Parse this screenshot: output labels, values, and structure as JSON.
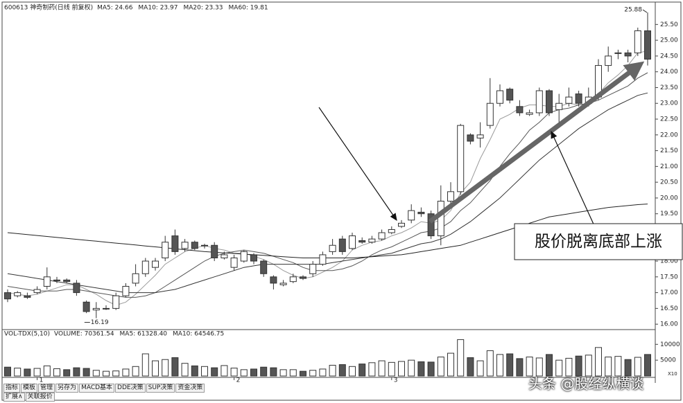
{
  "chart_data": {
    "type": "candlestick",
    "title": "600613 神奇制药(日线 前复权)",
    "categories": [
      null,
      null,
      null,
      "1",
      null,
      null,
      null,
      null,
      null,
      null,
      null,
      null,
      null,
      null,
      null,
      null,
      null,
      null,
      null,
      null,
      null,
      null,
      null,
      "2",
      null,
      null,
      null,
      null,
      null,
      null,
      null,
      null,
      null,
      null,
      null,
      null,
      null,
      null,
      null,
      "3",
      null,
      null,
      null,
      null,
      null,
      null,
      null,
      null,
      null,
      null,
      null,
      null,
      null,
      null,
      null,
      null,
      null,
      null,
      null,
      null,
      null,
      null,
      null,
      null,
      null,
      null
    ],
    "open": [
      17.0,
      16.9,
      16.9,
      17.0,
      17.2,
      17.4,
      17.4,
      17.3,
      16.7,
      16.45,
      16.5,
      16.5,
      16.9,
      17.3,
      17.6,
      17.8,
      18.1,
      18.8,
      18.4,
      18.6,
      18.5,
      18.5,
      18.1,
      17.8,
      18.0,
      18.2,
      18.0,
      17.5,
      17.25,
      17.35,
      17.5,
      17.6,
      17.9,
      18.3,
      18.7,
      18.4,
      18.65,
      18.6,
      18.7,
      18.9,
      19.1,
      19.3,
      19.55,
      19.5,
      18.8,
      19.9,
      20.2,
      22.0,
      21.9,
      22.3,
      23.0,
      23.45,
      22.9,
      22.65,
      22.7,
      23.4,
      22.8,
      23.0,
      23.3,
      23.0,
      23.2,
      24.2,
      24.6,
      24.6,
      24.6,
      25.3
    ],
    "high": [
      17.1,
      17.05,
      17.0,
      17.2,
      17.8,
      17.5,
      17.45,
      17.4,
      16.75,
      16.7,
      16.6,
      17.0,
      17.3,
      17.9,
      18.1,
      18.1,
      18.8,
      19.0,
      18.7,
      18.65,
      18.55,
      18.6,
      18.3,
      18.2,
      18.35,
      18.25,
      18.05,
      17.55,
      17.4,
      17.6,
      17.55,
      18.0,
      18.3,
      18.7,
      18.8,
      18.9,
      18.75,
      18.8,
      19.0,
      19.1,
      19.3,
      19.8,
      19.7,
      19.6,
      20.4,
      20.5,
      22.35,
      22.05,
      22.4,
      23.8,
      23.6,
      23.5,
      23.1,
      22.8,
      23.5,
      23.45,
      23.3,
      23.5,
      23.4,
      23.5,
      24.4,
      24.8,
      24.7,
      24.7,
      25.4,
      25.88
    ],
    "low": [
      16.7,
      16.85,
      16.8,
      16.95,
      17.1,
      17.3,
      17.3,
      16.9,
      16.35,
      16.19,
      16.45,
      16.45,
      16.85,
      17.2,
      17.5,
      17.7,
      18.0,
      18.2,
      18.3,
      18.35,
      18.4,
      18.0,
      18.05,
      17.7,
      17.95,
      17.9,
      17.5,
      17.1,
      17.2,
      17.3,
      17.4,
      17.5,
      17.85,
      18.2,
      18.2,
      18.35,
      18.55,
      18.55,
      18.65,
      18.85,
      19.05,
      19.2,
      19.4,
      18.7,
      18.5,
      19.8,
      20.1,
      21.7,
      21.6,
      22.2,
      22.9,
      23.0,
      22.6,
      22.6,
      22.6,
      22.6,
      22.4,
      22.9,
      22.9,
      22.9,
      23.1,
      24.0,
      24.4,
      24.3,
      24.5,
      24.2
    ],
    "close": [
      16.8,
      17.0,
      16.85,
      17.1,
      17.5,
      17.4,
      17.35,
      17.0,
      16.4,
      16.5,
      16.5,
      16.9,
      17.2,
      17.6,
      18.0,
      18.0,
      18.6,
      18.3,
      18.6,
      18.4,
      18.5,
      18.1,
      18.2,
      18.1,
      18.3,
      18.0,
      17.6,
      17.3,
      17.3,
      17.5,
      17.45,
      17.9,
      18.2,
      18.5,
      18.3,
      18.8,
      18.6,
      18.7,
      18.9,
      19.0,
      19.2,
      19.6,
      19.5,
      18.8,
      19.9,
      20.2,
      22.3,
      21.8,
      22.0,
      23.0,
      23.4,
      23.1,
      22.7,
      22.7,
      23.4,
      22.7,
      23.0,
      23.2,
      23.0,
      23.2,
      24.2,
      24.5,
      24.6,
      24.5,
      25.3,
      24.4
    ],
    "series": [
      {
        "name": "MA5: 24.66",
        "color": "#9a9a9a",
        "values": [
          17.0,
          16.95,
          16.9,
          16.95,
          17.05,
          17.15,
          17.25,
          17.25,
          17.1,
          16.95,
          16.75,
          16.6,
          16.7,
          16.95,
          17.25,
          17.55,
          17.9,
          18.1,
          18.3,
          18.4,
          18.5,
          18.4,
          18.35,
          18.25,
          18.25,
          18.15,
          18.05,
          17.9,
          17.7,
          17.55,
          17.45,
          17.5,
          17.65,
          17.8,
          18.0,
          18.35,
          18.5,
          18.6,
          18.65,
          18.8,
          18.9,
          19.05,
          19.25,
          19.2,
          19.3,
          19.6,
          20.15,
          20.5,
          21.25,
          21.85,
          22.5,
          22.65,
          22.85,
          22.95,
          22.95,
          22.9,
          22.9,
          23.0,
          22.95,
          23.0,
          23.3,
          23.65,
          23.9,
          24.2,
          24.6,
          24.66
        ]
      },
      {
        "name": "MA10: 23.97",
        "color": "#555555",
        "values": [
          17.2,
          17.15,
          17.1,
          17.05,
          17.05,
          17.05,
          17.1,
          17.1,
          17.05,
          17.0,
          16.95,
          16.9,
          16.85,
          16.85,
          16.9,
          17.0,
          17.2,
          17.4,
          17.6,
          17.8,
          18.0,
          18.15,
          18.25,
          18.3,
          18.35,
          18.3,
          18.25,
          18.15,
          18.05,
          17.95,
          17.8,
          17.7,
          17.7,
          17.7,
          17.75,
          17.85,
          18.0,
          18.2,
          18.35,
          18.45,
          18.6,
          18.75,
          18.9,
          18.95,
          19.05,
          19.25,
          19.6,
          19.85,
          20.2,
          20.55,
          21.0,
          21.4,
          21.75,
          22.15,
          22.4,
          22.7,
          22.8,
          22.85,
          22.95,
          23.0,
          23.1,
          23.25,
          23.4,
          23.55,
          23.8,
          23.97
        ]
      },
      {
        "name": "MA20: 23.33",
        "color": "#333333",
        "values": [
          17.6,
          17.55,
          17.5,
          17.45,
          17.4,
          17.35,
          17.3,
          17.25,
          17.2,
          17.15,
          17.1,
          17.05,
          17.0,
          17.0,
          17.0,
          17.0,
          17.05,
          17.1,
          17.2,
          17.3,
          17.4,
          17.5,
          17.6,
          17.7,
          17.8,
          17.85,
          17.9,
          17.9,
          17.9,
          17.9,
          17.9,
          17.9,
          17.9,
          17.95,
          18.0,
          18.05,
          18.1,
          18.15,
          18.2,
          18.25,
          18.35,
          18.45,
          18.55,
          18.6,
          18.7,
          18.85,
          19.05,
          19.25,
          19.5,
          19.75,
          20.0,
          20.3,
          20.6,
          20.9,
          21.2,
          21.45,
          21.7,
          21.95,
          22.2,
          22.4,
          22.6,
          22.8,
          22.95,
          23.1,
          23.25,
          23.33
        ]
      },
      {
        "name": "MA60: 19.81",
        "color": "#222222",
        "values": [
          18.9,
          18.87,
          18.84,
          18.81,
          18.78,
          18.75,
          18.72,
          18.69,
          18.66,
          18.63,
          18.6,
          18.57,
          18.54,
          18.51,
          18.48,
          18.45,
          18.42,
          18.39,
          18.36,
          18.33,
          18.3,
          18.28,
          18.26,
          18.24,
          18.22,
          18.2,
          18.18,
          18.16,
          18.14,
          18.12,
          18.1,
          18.1,
          18.1,
          18.1,
          18.1,
          18.1,
          18.12,
          18.14,
          18.16,
          18.18,
          18.2,
          18.25,
          18.3,
          18.35,
          18.4,
          18.45,
          18.5,
          18.6,
          18.7,
          18.8,
          18.9,
          19.0,
          19.1,
          19.2,
          19.3,
          19.4,
          19.45,
          19.5,
          19.55,
          19.6,
          19.65,
          19.7,
          19.73,
          19.76,
          19.79,
          19.81
        ]
      }
    ],
    "ylim": [
      15.85,
      26.1
    ],
    "yticks": [
      {
        "value": 16,
        "label": "16.00"
      },
      {
        "value": 16.5,
        "label": "16.50"
      },
      {
        "value": 17,
        "label": "17.00"
      },
      {
        "value": 17.5,
        "label": "17.50"
      },
      {
        "value": 18,
        "label": "18.00"
      },
      {
        "value": 18.5,
        "label": "18.50"
      },
      {
        "value": 19,
        "label": "19.00"
      },
      {
        "value": 19.5,
        "label": "19.50"
      },
      {
        "value": 20,
        "label": "20.00"
      },
      {
        "value": 20.5,
        "label": "20.50"
      },
      {
        "value": 21,
        "label": "21.00"
      },
      {
        "value": 21.5,
        "label": "21.50"
      },
      {
        "value": 22,
        "label": "22.00"
      },
      {
        "value": 22.5,
        "label": "22.50"
      },
      {
        "value": 23,
        "label": "23.00"
      },
      {
        "value": 23.5,
        "label": "23.50"
      },
      {
        "value": 24,
        "label": "24.00"
      },
      {
        "value": 24.5,
        "label": "24.50"
      },
      {
        "value": 25,
        "label": "25.00"
      },
      {
        "value": 25.5,
        "label": "25.50"
      }
    ],
    "grid": false,
    "annotation": "股价脱离底部上涨",
    "volume": {
      "title": "VOL-TDX(5,10)",
      "labels": [
        "VOLUME: 70361.54",
        "MA5: 61328.40",
        "MA10: 64546.75"
      ],
      "values": [
        2800,
        2500,
        2200,
        2400,
        3200,
        2300,
        2000,
        2600,
        2400,
        1800,
        1500,
        1600,
        2200,
        3000,
        7000,
        4800,
        5200,
        5800,
        4000,
        3200,
        3000,
        2600,
        3300,
        2500,
        2000,
        2200,
        2800,
        2600,
        2000,
        2000,
        1500,
        1800,
        2200,
        3400,
        3600,
        3000,
        3800,
        4200,
        4800,
        4300,
        4600,
        5000,
        4500,
        4400,
        6000,
        7200,
        11500,
        5800,
        4800,
        8000,
        6800,
        7000,
        5500,
        6000,
        5700,
        6800,
        5000,
        5600,
        6300,
        6600,
        9000,
        6000,
        6200,
        5200,
        5900,
        6800
      ],
      "ylim": [
        0,
        14000
      ],
      "yticks": [
        5000,
        10000
      ],
      "unit": "X10"
    }
  },
  "toolbar": {
    "tabs": [
      "指标",
      "模板",
      "管理",
      "另存为",
      "MACD基本",
      "DDE决策",
      "SUP决策",
      "资金决策"
    ],
    "row2": [
      "扩展∧",
      "关联报价"
    ]
  },
  "watermark": "头条 @股经纵横谈"
}
